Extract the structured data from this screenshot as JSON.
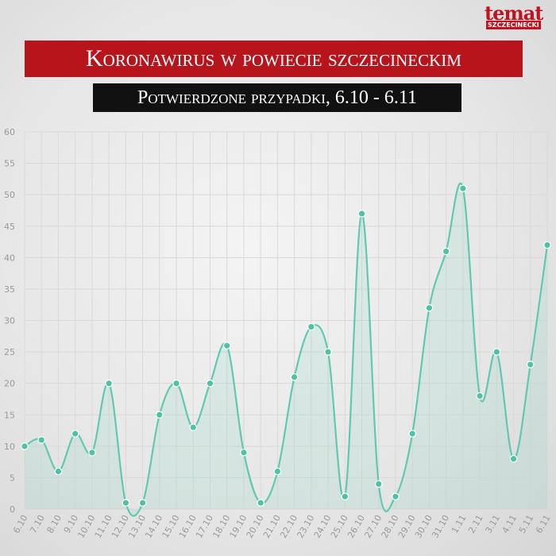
{
  "logo": {
    "word": "temat",
    "sub": "SZCZECINECKI"
  },
  "chart_data": {
    "type": "line",
    "title": "Koronawirus w powiecie szczecineckim",
    "subtitle": "Potwierdzone przypadki, 6.10 - 6.11",
    "xlabel": "",
    "ylabel": "",
    "ylim": [
      0,
      60
    ],
    "yticks": [
      0,
      5,
      10,
      15,
      20,
      25,
      30,
      35,
      40,
      45,
      50,
      55,
      60
    ],
    "grid": true,
    "categories": [
      "6.10",
      "7.10",
      "8.10",
      "9.10",
      "10.10",
      "11.10",
      "12.10",
      "13.10",
      "14.10",
      "15.10",
      "16.10",
      "17.10",
      "18.10",
      "19.10",
      "20.10",
      "21.10",
      "22.10",
      "23.10",
      "24.10",
      "25.10",
      "26.10",
      "27.10",
      "28.10",
      "29.10",
      "30.10",
      "31.10",
      "1.11",
      "2.11",
      "3.11",
      "4.11",
      "5.11",
      "6.11"
    ],
    "series": [
      {
        "values": [
          10,
          11,
          6,
          12,
          9,
          20,
          1,
          1,
          15,
          20,
          13,
          20,
          26,
          9,
          1,
          6,
          21,
          29,
          25,
          2,
          47,
          4,
          2,
          12,
          32,
          41,
          51,
          18,
          25,
          8,
          23,
          42
        ]
      }
    ],
    "colors": {
      "line": "#62c8b0",
      "marker": "#4fc1a6",
      "fill": "#7fd3bf",
      "grid": "#d9d9d9",
      "tick": "#9a9a9a"
    }
  }
}
